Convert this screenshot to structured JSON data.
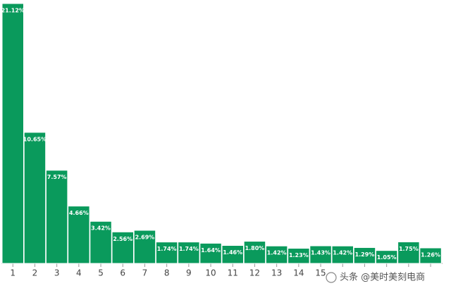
{
  "chart_data": {
    "type": "bar",
    "categories": [
      "1",
      "2",
      "3",
      "4",
      "5",
      "6",
      "7",
      "8",
      "9",
      "10",
      "11",
      "12",
      "13",
      "14",
      "15",
      null,
      null,
      null,
      null,
      null
    ],
    "values": [
      21.12,
      10.65,
      7.57,
      4.66,
      3.42,
      2.56,
      2.69,
      1.74,
      1.74,
      1.64,
      1.46,
      1.8,
      1.42,
      1.23,
      1.43,
      1.42,
      1.29,
      1.05,
      1.75,
      1.26
    ],
    "value_labels": [
      "21.12%",
      "10.65%",
      "7.57%",
      "4.66%",
      "3.42%",
      "2.56%",
      "2.69%",
      "1.74%",
      "1.74%",
      "1.64%",
      "1.46%",
      "1.80%",
      "1.42%",
      "1.23%",
      "1.43%",
      "1.42%",
      "1.29%",
      "1.05%",
      "1.75%",
      "1.26%"
    ],
    "color": "#0a9a5c",
    "watermark": "头条 @美时美刻电商"
  }
}
